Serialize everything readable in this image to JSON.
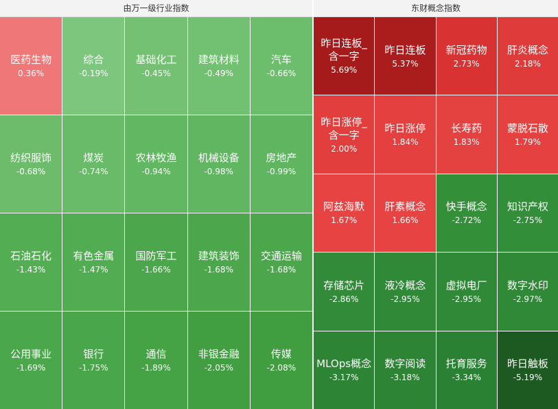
{
  "chart_data": [
    {
      "type": "treemap",
      "title": "由万一级行业指数",
      "categories": [
        "医药生物",
        "综合",
        "基础化工",
        "建筑材料",
        "汽车",
        "纺织服饰",
        "煤炭",
        "农林牧渔",
        "机械设备",
        "房地产",
        "石油石化",
        "有色金属",
        "国防军工",
        "建筑装饰",
        "交通运输",
        "公用事业",
        "银行",
        "通信",
        "非银金融",
        "传媒"
      ],
      "values": [
        0.36,
        -0.19,
        -0.45,
        -0.49,
        -0.66,
        -0.68,
        -0.74,
        -0.94,
        -0.98,
        -0.99,
        -1.43,
        -1.47,
        -1.66,
        -1.68,
        -1.68,
        -1.69,
        -1.75,
        -1.89,
        -2.05,
        -2.08
      ],
      "value_labels": [
        "0.36%",
        "-0.19%",
        "-0.45%",
        "-0.49%",
        "-0.66%",
        "-0.68%",
        "-0.74%",
        "-0.94%",
        "-0.98%",
        "-0.99%",
        "-1.43%",
        "-1.47%",
        "-1.66%",
        "-1.68%",
        "-1.68%",
        "-1.69%",
        "-1.75%",
        "-1.89%",
        "-2.05%",
        "-2.08%"
      ]
    },
    {
      "type": "treemap",
      "title": "东财概念指数",
      "categories": [
        "昨日连板_含一字",
        "昨日连板",
        "新冠药物",
        "肝炎概念",
        "昨日涨停_含一字",
        "昨日涨停",
        "长寿药",
        "蒙脱石散",
        "阿兹海默",
        "肝素概念",
        "快手概念",
        "知识产权",
        "存储芯片",
        "液冷概念",
        "虚拟电厂",
        "数字水印",
        "MLOps概念",
        "数字阅读",
        "托育服务",
        "昨日触板"
      ],
      "values": [
        5.69,
        5.37,
        2.73,
        2.18,
        2.0,
        1.84,
        1.83,
        1.79,
        1.67,
        1.66,
        -2.72,
        -2.75,
        -2.86,
        -2.95,
        -2.95,
        -2.97,
        -3.17,
        -3.18,
        -3.34,
        -5.19
      ],
      "value_labels": [
        "5.69%",
        "5.37%",
        "2.73%",
        "2.18%",
        "2.00%",
        "1.84%",
        "1.83%",
        "1.79%",
        "1.67%",
        "1.66%",
        "-2.72%",
        "-2.75%",
        "-2.86%",
        "-2.95%",
        "-2.95%",
        "-2.97%",
        "-3.17%",
        "-3.18%",
        "-3.34%",
        "-5.19%"
      ]
    }
  ]
}
